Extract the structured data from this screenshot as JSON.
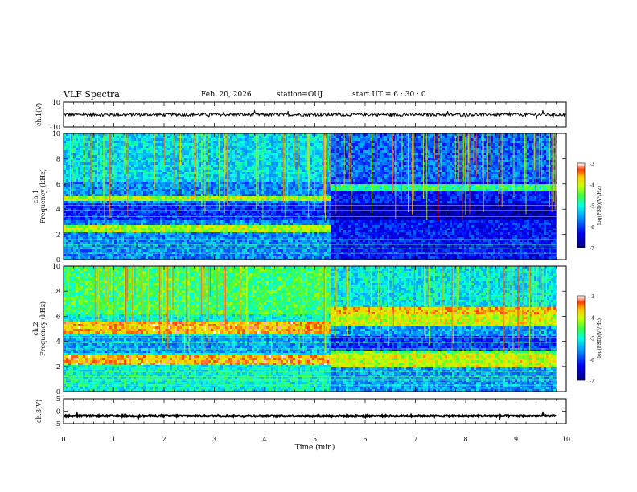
{
  "header": {
    "title": "VLF Spectra",
    "date": "Feb. 20, 2026",
    "station": "station=OUJ",
    "start": "start  UT  =   6  : 30 : 0"
  },
  "colors": {
    "frame": "#000000",
    "spectrogram_scale": [
      "#000080",
      "#0000ff",
      "#00a0ff",
      "#00ffff",
      "#00ff80",
      "#80ff00",
      "#ffff00",
      "#ff8000",
      "#ff0000",
      "#ffffff"
    ]
  },
  "chart_data": [
    {
      "type": "line",
      "id": "ch1-waveform",
      "ylabel": "ch.1(V)",
      "ylim": [
        -10,
        10
      ],
      "yticks": [
        "10",
        "-10"
      ],
      "x_range_min": [
        0,
        10
      ],
      "approx_level": 0,
      "approx_amplitude": 1.2
    },
    {
      "type": "heatmap",
      "id": "ch1-spectrogram",
      "ylabel_line1": "ch.1",
      "ylabel_line2": "Frequency  (kHz)",
      "ylim": [
        0,
        10
      ],
      "yticks": [
        "0",
        "2",
        "4",
        "6",
        "8",
        "10"
      ],
      "x_range_min": [
        0,
        9.8
      ],
      "change_time_min": 5.3,
      "before": {
        "bands_khz": [
          [
            4.7,
            5.2
          ],
          [
            2.3,
            2.8
          ]
        ],
        "floor_log_psd": -5.6
      },
      "after": {
        "bands_khz": [
          [
            5.5,
            6.0
          ]
        ],
        "floor_log_psd": -6.2
      },
      "colorbar": {
        "label": "log(PSD)(V²/Hz)",
        "ticks": [
          "-3",
          "-4",
          "-5",
          "-6",
          "-7"
        ],
        "range": [
          -7,
          -3
        ]
      }
    },
    {
      "type": "heatmap",
      "id": "ch2-spectrogram",
      "ylabel_line1": "ch.2",
      "ylabel_line2": "Frequency  (kHz)",
      "ylim": [
        0,
        10
      ],
      "yticks": [
        "0",
        "2",
        "4",
        "6",
        "8",
        "10"
      ],
      "x_range_min": [
        0,
        9.8
      ],
      "change_time_min": 5.3,
      "before": {
        "bands_khz": [
          [
            4.7,
            5.6
          ],
          [
            2.3,
            2.9
          ]
        ],
        "floor_log_psd": -5.0
      },
      "after": {
        "bands_khz": [
          [
            5.2,
            6.8
          ],
          [
            2.0,
            3.3
          ]
        ],
        "floor_log_psd": -5.5
      },
      "colorbar": {
        "label": "log(PSD)(V²/Hz)",
        "ticks": [
          "-3",
          "-4",
          "-5",
          "-6",
          "-7"
        ],
        "range": [
          -7,
          -3
        ]
      }
    },
    {
      "type": "line",
      "id": "ch3-waveform",
      "ylabel": "ch.3(V)",
      "ylim": [
        -5,
        5
      ],
      "yticks": [
        "5",
        "0",
        "-5"
      ],
      "x_range_min": [
        0,
        9.8
      ],
      "approx_level": -1.9,
      "approx_amplitude": 0.3
    }
  ],
  "xaxis": {
    "label": "Time  (min)",
    "ticks": [
      "0",
      "1",
      "2",
      "3",
      "4",
      "5",
      "6",
      "7",
      "8",
      "9",
      "10"
    ],
    "range": [
      0,
      10
    ]
  }
}
